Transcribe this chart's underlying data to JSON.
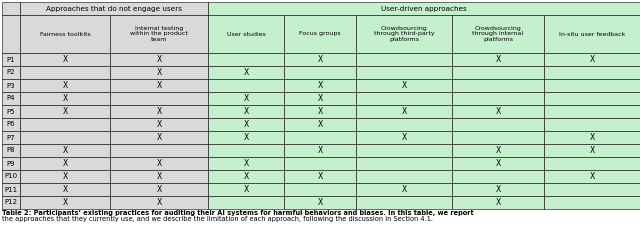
{
  "header_row1_no_engage": "Approaches that do not engage users",
  "header_row1_user_driven": "User-driven approaches",
  "header_row2": [
    "Fairness toolkits",
    "Internal testing\nwithin the product\nteam",
    "User studies",
    "Focus groups",
    "Crowdsourcing\nthrough third-party\nplatforms",
    "Crowdsourcing\nthrough internal\nplatforms",
    "In-situ user feedback"
  ],
  "participants": [
    "P1",
    "P2",
    "P3",
    "P4",
    "P5",
    "P6",
    "P7",
    "P8",
    "P9",
    "P10",
    "P11",
    "P12"
  ],
  "data": [
    [
      1,
      1,
      0,
      1,
      0,
      1,
      1
    ],
    [
      0,
      1,
      1,
      0,
      0,
      0,
      0
    ],
    [
      1,
      1,
      0,
      1,
      1,
      0,
      0
    ],
    [
      1,
      0,
      1,
      1,
      0,
      0,
      0
    ],
    [
      1,
      1,
      1,
      1,
      1,
      1,
      0
    ],
    [
      0,
      1,
      1,
      1,
      0,
      0,
      0
    ],
    [
      0,
      1,
      1,
      0,
      1,
      0,
      1
    ],
    [
      1,
      0,
      0,
      1,
      0,
      1,
      1
    ],
    [
      1,
      1,
      1,
      0,
      0,
      1,
      0
    ],
    [
      1,
      1,
      1,
      1,
      0,
      0,
      1
    ],
    [
      1,
      1,
      1,
      0,
      1,
      1,
      0
    ],
    [
      1,
      1,
      0,
      1,
      0,
      1,
      0
    ]
  ],
  "bg_no_engage": "#d9d9d9",
  "bg_user_driven": "#c6efce",
  "bg_row_label": "#e8e8e8",
  "caption_bold": "Table 2: Participants’ existing practices for auditing their AI systems for harmful behaviors and biases. In this table, we report",
  "caption_normal": "the approaches that they currently use, and we describe the limitation of each approach, following the discussion in Section 4.1.",
  "x_marker": "X"
}
